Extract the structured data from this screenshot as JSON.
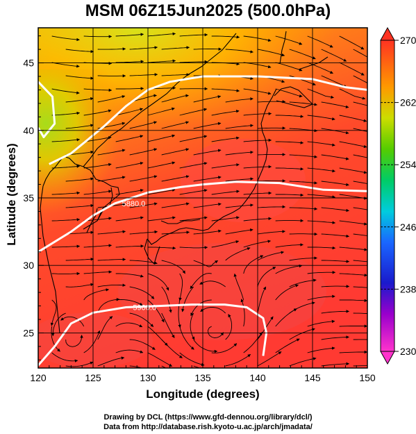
{
  "title": "MSM 06Z15Jun2025 (500.0hPa)",
  "xlabel": "Longitude (degrees)",
  "ylabel": "Latitude  (degrees)",
  "credits": {
    "line1": "Drawing by DCL (https://www.gfd-dennou.org/library/dcl/)",
    "line2": "Data from http://database.rish.kyoto-u.ac.jp/arch/jmadata/"
  },
  "chart_data": {
    "type": "heatmap",
    "xlim": [
      120,
      150
    ],
    "ylim": [
      22.4,
      47.6
    ],
    "x_ticks": [
      120,
      125,
      130,
      135,
      140,
      145,
      150
    ],
    "y_ticks": [
      25,
      30,
      35,
      40,
      45
    ],
    "colorbar": {
      "min": 230,
      "max": 270,
      "ticks": [
        230,
        238,
        246,
        254,
        262,
        270
      ]
    },
    "contours": [
      {
        "label": "5880.0",
        "points": [
          [
            120,
            31
          ],
          [
            123,
            32.5
          ],
          [
            125,
            33.7
          ],
          [
            127,
            34.6
          ],
          [
            130,
            35.4
          ],
          [
            133,
            35.8
          ],
          [
            135,
            36
          ],
          [
            138,
            36.2
          ],
          [
            142,
            36.1
          ],
          [
            146,
            35.6
          ],
          [
            150,
            35.5
          ]
        ]
      },
      {
        "label": "5900.0",
        "points": [
          [
            120,
            22.6
          ],
          [
            121.5,
            24
          ],
          [
            123,
            25.7
          ],
          [
            125,
            26.5
          ],
          [
            128,
            26.9
          ],
          [
            131,
            27
          ],
          [
            134,
            27.1
          ],
          [
            137,
            27.1
          ],
          [
            139,
            26.9
          ],
          [
            140.5,
            26.1
          ],
          [
            140.8,
            25
          ],
          [
            140.5,
            23.3
          ]
        ]
      },
      {
        "label": "",
        "points": [
          [
            121,
            37.5
          ],
          [
            123,
            38.3
          ],
          [
            126,
            40.3
          ],
          [
            128,
            41.8
          ],
          [
            130,
            43
          ],
          [
            132,
            43.6
          ],
          [
            135,
            44
          ],
          [
            140,
            44
          ],
          [
            145,
            43.8
          ],
          [
            148,
            43.2
          ],
          [
            150,
            43
          ]
        ]
      },
      {
        "label": "",
        "points": [
          [
            120,
            43.6
          ],
          [
            121.3,
            42.5
          ],
          [
            121.5,
            40.5
          ],
          [
            120.5,
            39.5
          ],
          [
            120,
            40.2
          ]
        ]
      }
    ]
  }
}
